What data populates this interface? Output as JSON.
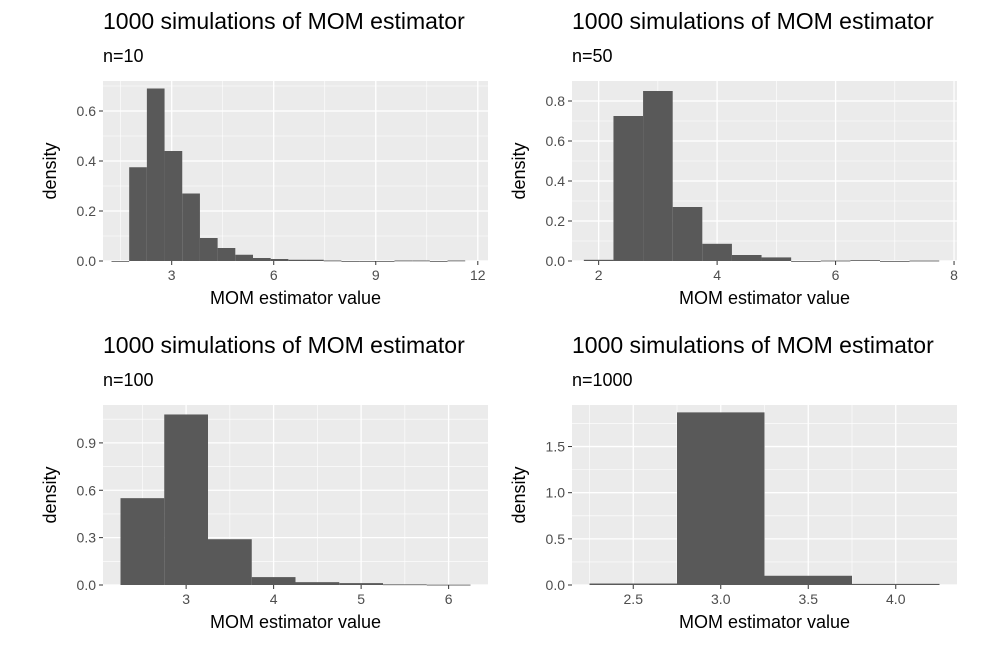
{
  "chart_data": [
    {
      "type": "bar",
      "title": "1000 simulations of MOM estimator",
      "subtitle": "n=10",
      "xlabel": "MOM estimator value",
      "ylabel": "density",
      "xlim": [
        0.98,
        12.3
      ],
      "ylim": [
        0,
        0.72
      ],
      "xticks": [
        3,
        6,
        9,
        12
      ],
      "yticks": [
        0.0,
        0.2,
        0.4,
        0.6
      ],
      "ytick_decimals": 1,
      "bin_edges": [
        1.23,
        1.75,
        2.27,
        2.79,
        3.31,
        3.83,
        4.35,
        4.87,
        5.39,
        5.91,
        6.43,
        6.95,
        7.47,
        7.99,
        8.51,
        9.03,
        9.55,
        10.07,
        10.59,
        11.11,
        11.63
      ],
      "values": [
        0.0,
        0.375,
        0.69,
        0.44,
        0.27,
        0.092,
        0.052,
        0.025,
        0.012,
        0.008,
        0.005,
        0.005,
        0.002,
        0.0,
        0.0,
        0.0,
        0.002,
        0.002,
        0.0,
        0.002
      ],
      "grid": true
    },
    {
      "type": "bar",
      "title": "1000 simulations of MOM estimator",
      "subtitle": "n=50",
      "xlabel": "MOM estimator value",
      "ylabel": "density",
      "xlim": [
        1.55,
        8.05
      ],
      "ylim": [
        0,
        0.9
      ],
      "xticks": [
        2,
        4,
        6,
        8
      ],
      "yticks": [
        0.0,
        0.2,
        0.4,
        0.6,
        0.8
      ],
      "ytick_decimals": 1,
      "bin_edges": [
        1.75,
        2.25,
        2.75,
        3.25,
        3.75,
        4.25,
        4.75,
        5.25,
        5.75,
        6.25,
        6.75,
        7.25,
        7.75
      ],
      "values": [
        0.006,
        0.725,
        0.85,
        0.27,
        0.086,
        0.03,
        0.018,
        0.0,
        0.002,
        0.004,
        0.0,
        0.002
      ],
      "grid": true
    },
    {
      "type": "bar",
      "title": "1000 simulations of MOM estimator",
      "subtitle": "n=100",
      "xlabel": "MOM estimator value",
      "ylabel": "density",
      "xlim": [
        2.05,
        6.45
      ],
      "ylim": [
        0,
        1.14
      ],
      "xticks": [
        3,
        4,
        5,
        6
      ],
      "yticks": [
        0.0,
        0.3,
        0.6,
        0.9
      ],
      "ytick_decimals": 1,
      "bin_edges": [
        2.25,
        2.75,
        3.25,
        3.75,
        4.25,
        4.75,
        5.25,
        5.75,
        6.25
      ],
      "values": [
        0.55,
        1.08,
        0.29,
        0.05,
        0.018,
        0.012,
        0.004,
        0.002
      ],
      "grid": true
    },
    {
      "type": "bar",
      "title": "1000 simulations of MOM estimator",
      "subtitle": "n=1000",
      "xlabel": "MOM estimator value",
      "ylabel": "density",
      "xlim": [
        2.15,
        4.35
      ],
      "ylim": [
        0,
        1.95
      ],
      "xticks": [
        2.5,
        3.0,
        3.5,
        4.0
      ],
      "xtick_decimals": 1,
      "yticks": [
        0.0,
        0.5,
        1.0,
        1.5
      ],
      "ytick_decimals": 1,
      "bin_edges": [
        2.25,
        2.75,
        3.25,
        3.75,
        4.25
      ],
      "values": [
        0.016,
        1.87,
        0.1,
        0.012
      ],
      "grid": true
    }
  ]
}
